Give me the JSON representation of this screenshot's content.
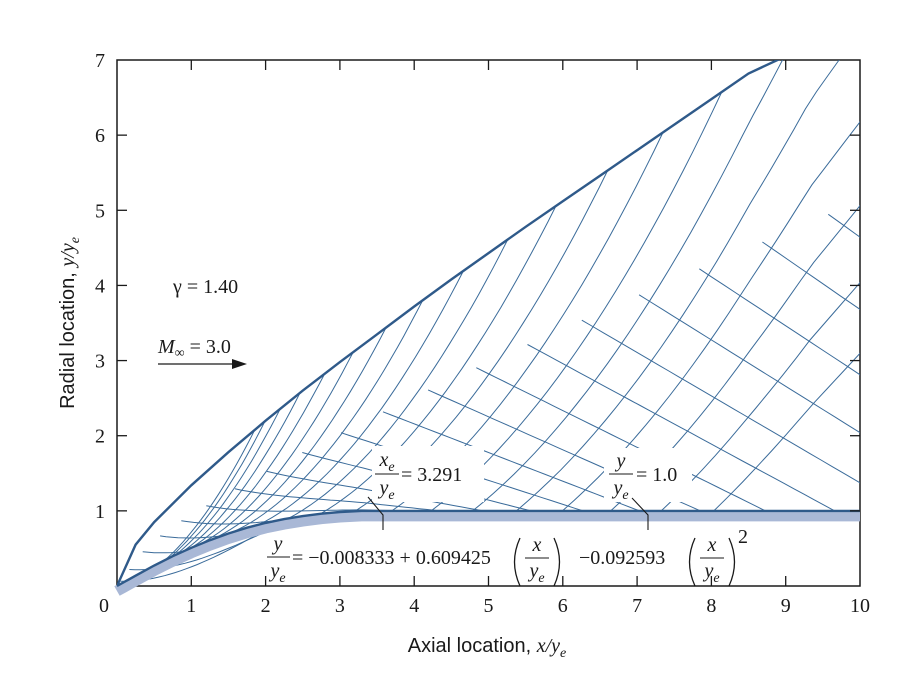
{
  "chart_data": {
    "type": "line",
    "xlabel_text": "Axial location, ",
    "xlabel_var": "x/y",
    "xlabel_sub": "e",
    "ylabel_text": "Radial location, ",
    "ylabel_var": "y/y",
    "ylabel_sub": "e",
    "xlim": [
      0,
      10
    ],
    "ylim": [
      0,
      7
    ],
    "x_ticks": [
      "0",
      "1",
      "2",
      "3",
      "4",
      "5",
      "6",
      "7",
      "8",
      "9",
      "10"
    ],
    "y_ticks": [
      "1",
      "2",
      "3",
      "4",
      "5",
      "6",
      "7"
    ],
    "grid": false,
    "series": [
      {
        "role": "shock wave",
        "x": [
          0,
          0.25,
          0.5,
          1,
          1.5,
          2,
          2.5,
          3,
          3.5,
          4,
          4.5,
          5,
          5.5,
          6,
          6.5,
          7,
          7.5,
          8,
          8.5,
          9
        ],
        "y": [
          0,
          0.55,
          0.85,
          1.34,
          1.78,
          2.2,
          2.6,
          2.98,
          3.35,
          3.72,
          4.08,
          4.43,
          4.78,
          5.12,
          5.46,
          5.8,
          6.14,
          6.48,
          6.82,
          7.05
        ]
      },
      {
        "role": "body",
        "equation": "y/ye = -0.008333 + 0.609425 (x/ye) - 0.092593 (x/ye)^2",
        "x": [
          0,
          0.25,
          0.5,
          0.75,
          1,
          1.25,
          1.5,
          1.75,
          2,
          2.25,
          2.5,
          2.75,
          3,
          3.291,
          4,
          5,
          6,
          7,
          8,
          9,
          10
        ],
        "y": [
          0,
          0.137,
          0.273,
          0.397,
          0.509,
          0.61,
          0.699,
          0.776,
          0.84,
          0.89,
          0.93,
          0.962,
          0.985,
          1.0,
          1.0,
          1.0,
          1.0,
          1.0,
          1.0,
          1.0,
          1.0
        ]
      }
    ],
    "annotations": {
      "gamma": "γ = 1.40",
      "mach_var": "M",
      "mach_sub": "∞",
      "mach_value": " = 3.0",
      "xe_num": "x",
      "xe_num_sub": "e",
      "xe_den": "y",
      "xe_den_sub": "e",
      "xe_value": "= 3.291",
      "y_num": "y",
      "y_den": "y",
      "y_den_sub": "e",
      "y_value": "= 1.0",
      "eq_lhs_num": "y",
      "eq_lhs_den": "y",
      "eq_lhs_den_sub": "e",
      "eq_part1": "= −0.008333 + 0.609425",
      "eq_part2": "−0.092593",
      "eq_frac_num": "x",
      "eq_frac_den": "y",
      "eq_frac_den_sub": "e",
      "eq_exponent": "2"
    },
    "colors": {
      "curve": "#2f5a8a",
      "mesh": "#3a6b9a",
      "body_band": "#a9b8d6",
      "axes": "#1a1a1a"
    }
  }
}
